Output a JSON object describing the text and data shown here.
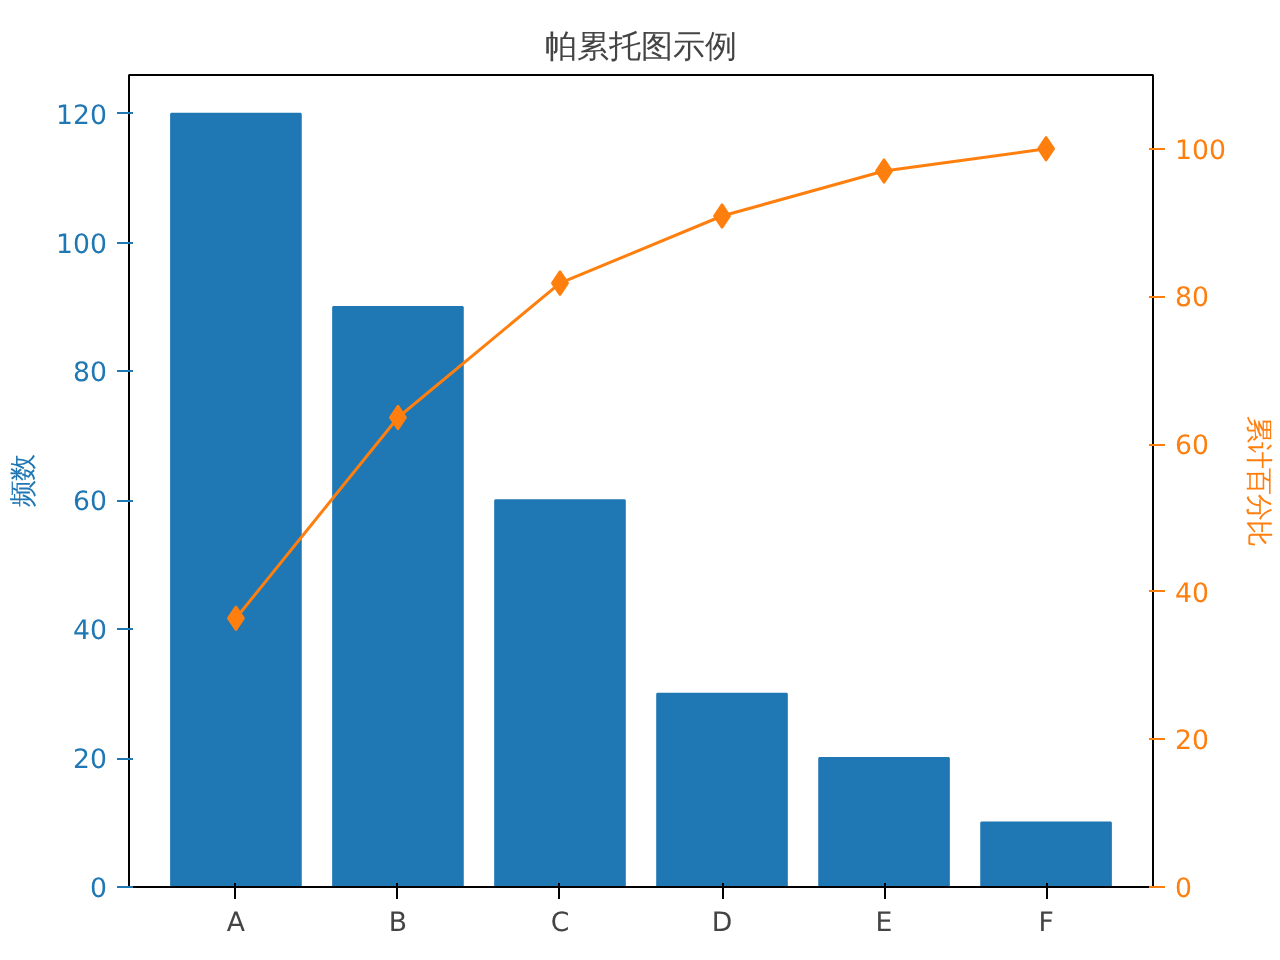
{
  "chart_data": {
    "type": "bar",
    "title": "帕累托图示例",
    "ylabel": "频数",
    "y2label": "累计百分比",
    "categories": [
      "A",
      "B",
      "C",
      "D",
      "E",
      "F"
    ],
    "series": [
      {
        "color": "#1f77b4",
        "values": [
          120,
          90,
          60,
          30,
          20,
          10
        ]
      },
      {
        "type": "line",
        "axis": "y2",
        "color": "#ff7f0e",
        "marker": "diamond",
        "line_style": "solid",
        "values": [
          36.4,
          63.6,
          81.8,
          90.9,
          97.0,
          100
        ]
      }
    ],
    "ylim": [
      0,
      126
    ],
    "yticks": [
      0,
      20,
      40,
      60,
      80,
      100,
      120
    ],
    "y2lim": [
      0,
      110
    ],
    "y2ticks": [
      0,
      20,
      40,
      60,
      80,
      100
    ],
    "grid": false
  }
}
